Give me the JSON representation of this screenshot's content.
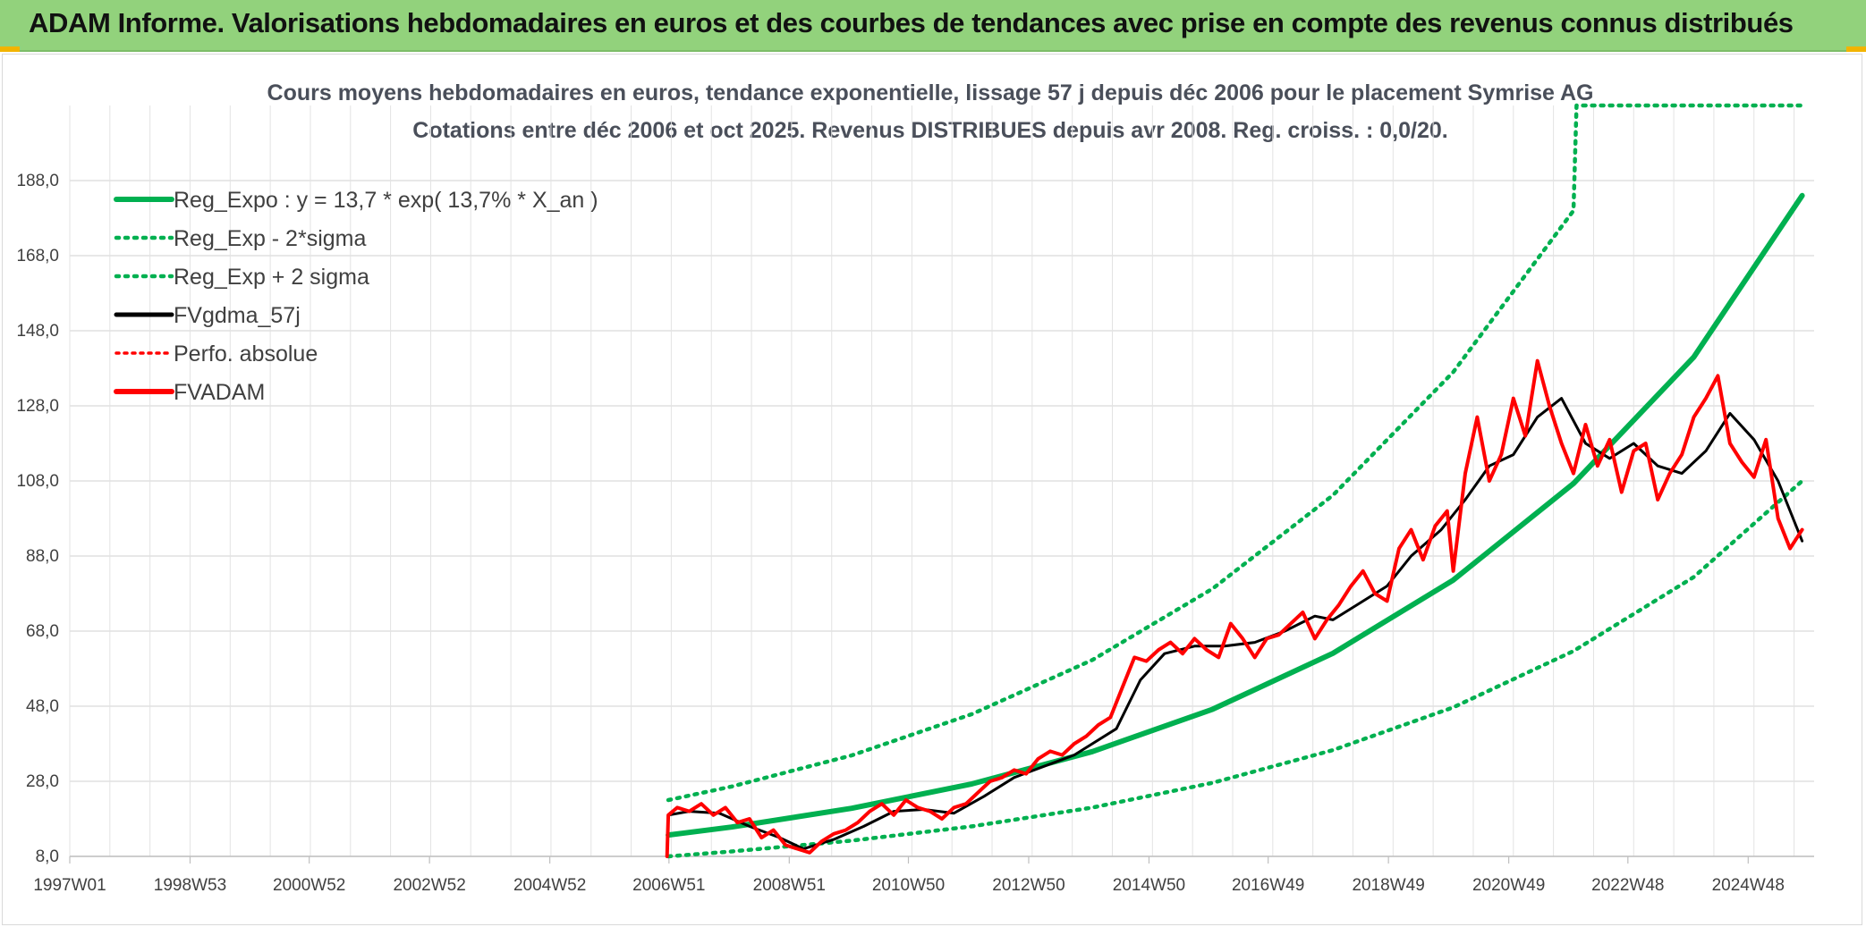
{
  "header": {
    "title": "ADAM Informe. Valorisations hebdomadaires en euros et des courbes de tendances avec prise en compte des revenus connus distribués"
  },
  "colors": {
    "header_bg": "#92d27c",
    "accent_corner": "#f2b400",
    "reg_expo": "#00b050",
    "fvgdma": "#000000",
    "fvadam": "#ff0000"
  },
  "chart_data": {
    "type": "line",
    "title_line1": "Cours moyens hebdomadaires en euros, tendance exponentielle, lissage 57 j depuis déc 2006 pour le placement Symrise AG",
    "title_line2": "Cotations entre déc 2006 et oct 2025. Revenus DISTRIBUES depuis avr 2008. Reg. croiss. : 0,0/20.",
    "xlabel": "",
    "ylabel": "",
    "x_ticks": [
      "1997W01",
      "1998W53",
      "2000W52",
      "2002W52",
      "2004W52",
      "2006W51",
      "2008W51",
      "2010W50",
      "2012W50",
      "2014W50",
      "2016W49",
      "2018W49",
      "2020W49",
      "2022W48",
      "2024W48"
    ],
    "y_ticks": [
      "8,0",
      "28,0",
      "48,0",
      "68,0",
      "88,0",
      "108,0",
      "128,0",
      "148,0",
      "168,0",
      "188,0"
    ],
    "xlim": [
      1997.0,
      2026.0
    ],
    "ylim": [
      8,
      208
    ],
    "grid": true,
    "legend_position": "top-left",
    "legend": [
      "Reg_Expo : y = 13,7 * exp( 13,7% *  X_an )",
      "Reg_Exp - 2*sigma",
      "Reg_Exp + 2 sigma",
      "FVgdma_57j",
      "Perfo. absolue",
      "FVADAM"
    ],
    "series": [
      {
        "name": "Reg_Expo : y = 13,7 * exp( 13,7% *  X_an )",
        "style": "solid-green",
        "x": [
          2006.95,
          2008.0,
          2010.0,
          2012.0,
          2014.0,
          2016.0,
          2018.0,
          2020.0,
          2022.0,
          2024.0,
          2025.8
        ],
        "y": [
          13.7,
          15.8,
          20.8,
          27.3,
          35.9,
          47.2,
          62.1,
          81.6,
          107.3,
          141.0,
          184.0
        ]
      },
      {
        "name": "Reg_Exp - 2*sigma",
        "style": "dotted-green",
        "x": [
          2006.95,
          2008.0,
          2010.0,
          2012.0,
          2014.0,
          2016.0,
          2018.0,
          2020.0,
          2022.0,
          2024.0,
          2025.8
        ],
        "y": [
          8.0,
          9.3,
          12.2,
          16.0,
          21.0,
          27.6,
          36.3,
          47.7,
          62.7,
          82.4,
          108.0
        ]
      },
      {
        "name": "Reg_Exp + 2 sigma",
        "style": "dotted-green",
        "x": [
          2006.95,
          2008.0,
          2010.0,
          2012.0,
          2014.0,
          2016.0,
          2018.0,
          2020.0,
          2022.0,
          2022.05,
          2025.8
        ],
        "y": [
          23.0,
          26.6,
          34.9,
          45.9,
          60.3,
          79.3,
          104.2,
          137.0,
          180.0,
          208.0,
          208.0
        ]
      },
      {
        "name": "FVgdma_57j",
        "style": "solid-black",
        "x": [
          2006.95,
          2007.3,
          2007.8,
          2008.3,
          2008.8,
          2009.2,
          2009.7,
          2010.2,
          2010.7,
          2011.2,
          2011.7,
          2012.2,
          2012.7,
          2013.2,
          2013.7,
          2014.0,
          2014.4,
          2014.8,
          2015.2,
          2015.7,
          2016.2,
          2016.7,
          2017.2,
          2017.7,
          2018.0,
          2018.4,
          2018.9,
          2019.3,
          2019.8,
          2020.2,
          2020.6,
          2021.0,
          2021.4,
          2021.8,
          2022.2,
          2022.6,
          2023.0,
          2023.4,
          2023.8,
          2024.2,
          2024.6,
          2025.0,
          2025.4,
          2025.8
        ],
        "y": [
          19.0,
          20.0,
          19.5,
          16.0,
          13.0,
          10.0,
          12.5,
          16.0,
          20.0,
          20.5,
          19.5,
          24.0,
          29.0,
          32.0,
          35.0,
          38.0,
          42.0,
          55.0,
          62.0,
          64.0,
          64.0,
          65.0,
          68.0,
          72.0,
          71.0,
          75.0,
          80.0,
          88.0,
          95.0,
          103.0,
          112.0,
          115.0,
          125.0,
          130.0,
          118.0,
          114.0,
          118.0,
          112.0,
          110.0,
          116.0,
          126.0,
          119.0,
          108.0,
          92.0
        ]
      },
      {
        "name": "FVADAM",
        "style": "solid-red",
        "x": [
          2006.93,
          2006.95,
          2007.1,
          2007.3,
          2007.5,
          2007.7,
          2007.9,
          2008.1,
          2008.3,
          2008.5,
          2008.7,
          2008.9,
          2009.1,
          2009.3,
          2009.5,
          2009.7,
          2009.9,
          2010.1,
          2010.3,
          2010.5,
          2010.7,
          2010.9,
          2011.1,
          2011.3,
          2011.5,
          2011.7,
          2011.9,
          2012.1,
          2012.3,
          2012.5,
          2012.7,
          2012.9,
          2013.1,
          2013.3,
          2013.5,
          2013.7,
          2013.9,
          2014.1,
          2014.3,
          2014.5,
          2014.7,
          2014.9,
          2015.1,
          2015.3,
          2015.5,
          2015.7,
          2015.9,
          2016.1,
          2016.3,
          2016.5,
          2016.7,
          2016.9,
          2017.1,
          2017.3,
          2017.5,
          2017.7,
          2017.9,
          2018.1,
          2018.3,
          2018.5,
          2018.7,
          2018.9,
          2019.1,
          2019.3,
          2019.5,
          2019.7,
          2019.9,
          2020.0,
          2020.2,
          2020.4,
          2020.6,
          2020.8,
          2021.0,
          2021.2,
          2021.4,
          2021.6,
          2021.8,
          2022.0,
          2022.2,
          2022.4,
          2022.6,
          2022.8,
          2023.0,
          2023.2,
          2023.4,
          2023.6,
          2023.8,
          2024.0,
          2024.2,
          2024.4,
          2024.6,
          2024.8,
          2025.0,
          2025.2,
          2025.4,
          2025.6,
          2025.8
        ],
        "y": [
          8.0,
          19.0,
          21.0,
          20.0,
          22.0,
          19.0,
          21.0,
          17.0,
          18.0,
          13.0,
          15.0,
          11.0,
          10.0,
          9.0,
          12.0,
          14.0,
          15.0,
          17.0,
          20.0,
          22.0,
          19.0,
          23.0,
          21.0,
          20.0,
          18.0,
          21.0,
          22.0,
          25.0,
          28.0,
          29.0,
          31.0,
          30.0,
          34.0,
          36.0,
          35.0,
          38.0,
          40.0,
          43.0,
          45.0,
          53.0,
          61.0,
          60.0,
          63.0,
          65.0,
          62.0,
          66.0,
          63.0,
          61.0,
          70.0,
          66.0,
          61.0,
          66.0,
          67.0,
          70.0,
          73.0,
          66.0,
          71.0,
          75.0,
          80.0,
          84.0,
          78.0,
          76.0,
          90.0,
          95.0,
          87.0,
          96.0,
          100.0,
          84.0,
          110.0,
          125.0,
          108.0,
          115.0,
          130.0,
          120.0,
          140.0,
          128.0,
          118.0,
          110.0,
          123.0,
          112.0,
          119.0,
          105.0,
          116.0,
          118.0,
          103.0,
          110.0,
          115.0,
          125.0,
          130.0,
          136.0,
          118.0,
          113.0,
          109.0,
          119.0,
          98.0,
          90.0,
          95.0
        ]
      }
    ]
  }
}
